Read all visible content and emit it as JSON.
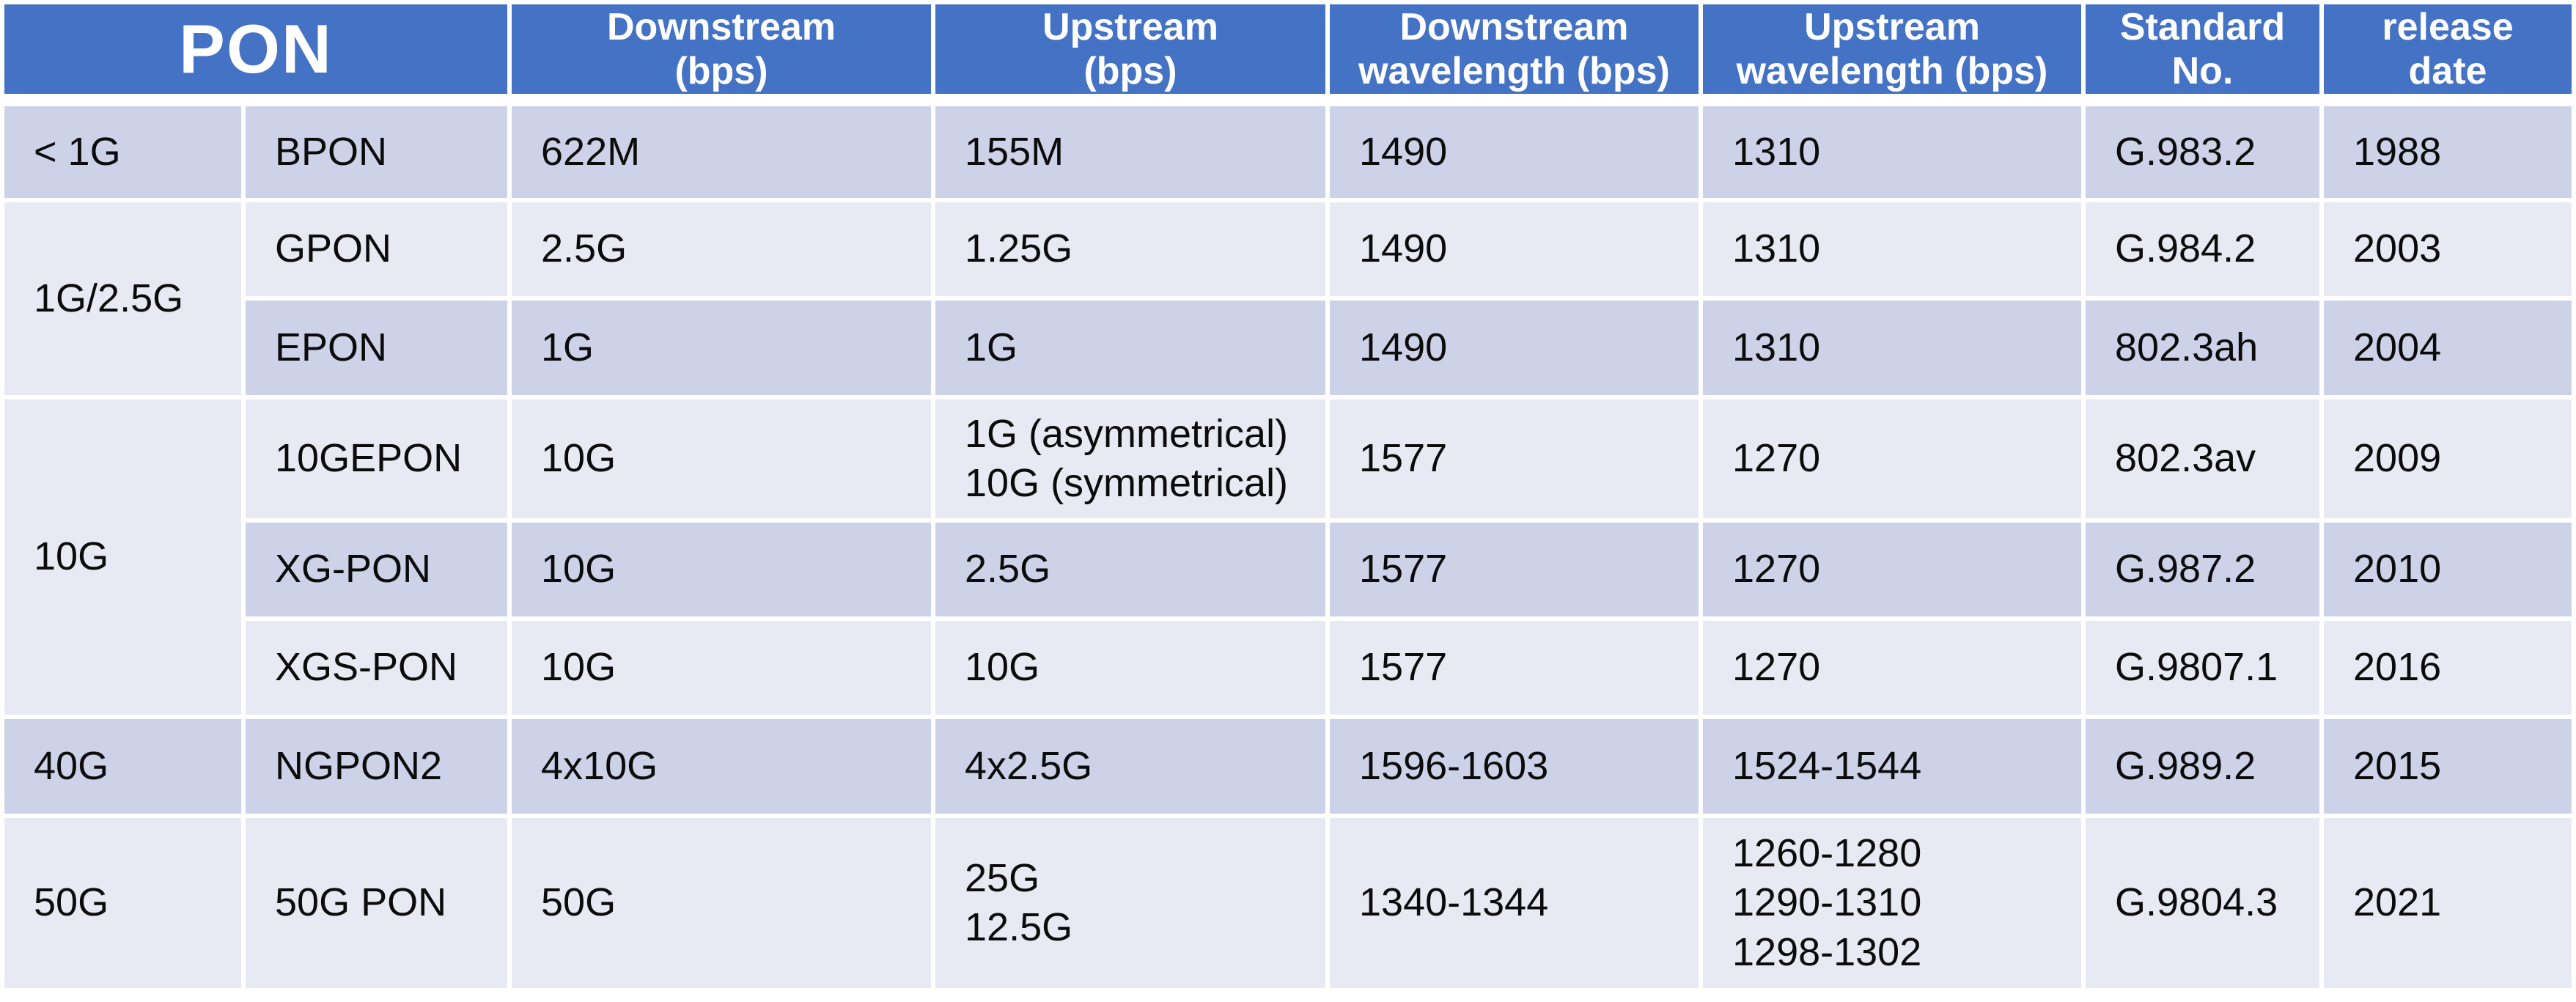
{
  "table": {
    "header": {
      "title": "PON",
      "cols": [
        "Downstream\n(bps)",
        "Upstream\n(bps)",
        "Downstream\nwavelength (bps)",
        "Upstream\nwavelength (bps)",
        "Standard\nNo.",
        "release\ndate"
      ]
    },
    "categories": [
      {
        "label": "< 1G"
      },
      {
        "label": "1G/2.5G"
      },
      {
        "label": "10G"
      },
      {
        "label": "40G"
      },
      {
        "label": "50G"
      }
    ],
    "rows": [
      {
        "name": "BPON",
        "downstream": "622M",
        "upstream": "155M",
        "downstream_wavelength": "1490",
        "upstream_wavelength": "1310",
        "standard": "G.983.2",
        "release": "1988"
      },
      {
        "name": "GPON",
        "downstream": "2.5G",
        "upstream": "1.25G",
        "downstream_wavelength": "1490",
        "upstream_wavelength": "1310",
        "standard": "G.984.2",
        "release": "2003"
      },
      {
        "name": "EPON",
        "downstream": "1G",
        "upstream": "1G",
        "downstream_wavelength": "1490",
        "upstream_wavelength": "1310",
        "standard": "802.3ah",
        "release": "2004"
      },
      {
        "name": "10GEPON",
        "downstream": "10G",
        "upstream": "1G (asymmetrical)\n10G (symmetrical)",
        "downstream_wavelength": "1577",
        "upstream_wavelength": "1270",
        "standard": "802.3av",
        "release": "2009"
      },
      {
        "name": "XG-PON",
        "downstream": "10G",
        "upstream": "2.5G",
        "downstream_wavelength": "1577",
        "upstream_wavelength": "1270",
        "standard": "G.987.2",
        "release": "2010"
      },
      {
        "name": "XGS-PON",
        "downstream": "10G",
        "upstream": "10G",
        "downstream_wavelength": "1577",
        "upstream_wavelength": "1270",
        "standard": "G.9807.1",
        "release": "2016"
      },
      {
        "name": "NGPON2",
        "downstream": "4x10G",
        "upstream": "4x2.5G",
        "downstream_wavelength": "1596-1603",
        "upstream_wavelength": "1524-1544",
        "standard": "G.989.2",
        "release": "2015"
      },
      {
        "name": "50G PON",
        "downstream": "50G",
        "upstream": "25G\n12.5G",
        "downstream_wavelength": "1340-1344",
        "upstream_wavelength": "1260-1280\n1290-1310\n1298-1302",
        "standard": "G.9804.3",
        "release": "2021"
      }
    ]
  },
  "colors": {
    "header_bg": "#4472C4",
    "header_text": "#FFFFFF",
    "band_dark": "#CED2E8",
    "band_light": "#E8EAF3",
    "body_text": "#0B0B0B",
    "gridline": "#FFFFFF"
  }
}
